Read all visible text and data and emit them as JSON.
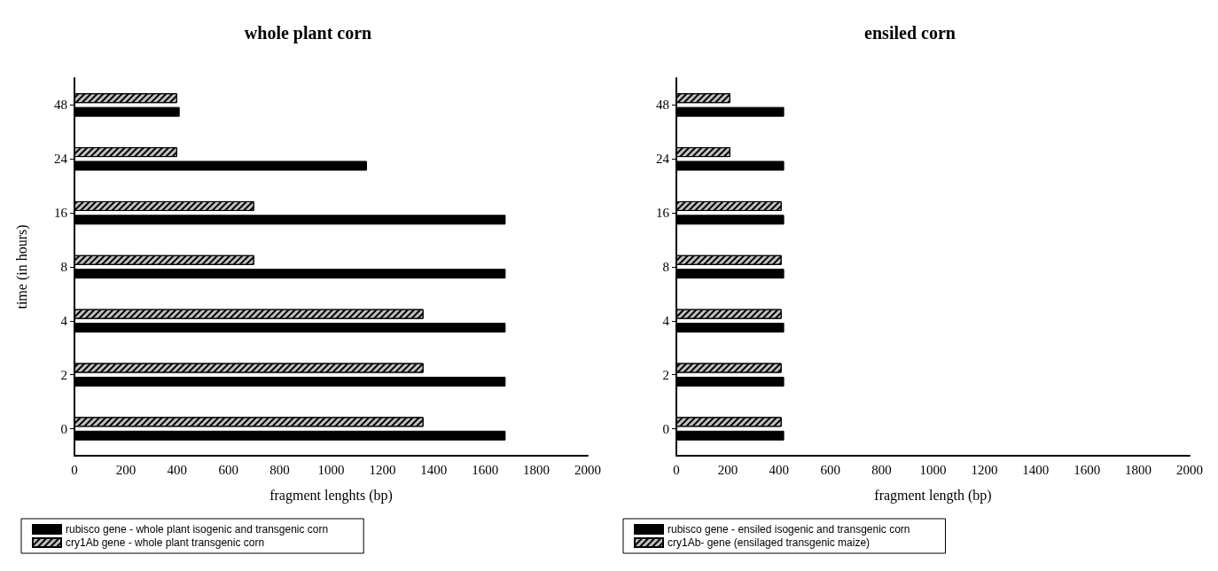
{
  "chart_data": [
    {
      "type": "bar",
      "orientation": "horizontal",
      "title": "whole plant corn",
      "xlabel": "fragment lenghts (bp)",
      "ylabel": "time (in hours)",
      "categories": [
        "48",
        "24",
        "16",
        "8",
        "4",
        "2",
        "0"
      ],
      "series": [
        {
          "name": "rubisco gene - whole plant isogenic and transgenic corn",
          "color": "#000000",
          "values": [
            410,
            1140,
            1680,
            1680,
            1680,
            1680,
            1680
          ]
        },
        {
          "name": "cry1Ab gene - whole plant transgenic corn",
          "color": "#c0c0c0",
          "values": [
            400,
            400,
            700,
            700,
            1360,
            1360,
            1360
          ]
        }
      ],
      "xlim": [
        0,
        2000
      ],
      "xticks": [
        0,
        200,
        400,
        600,
        800,
        1000,
        1200,
        1400,
        1600,
        1800,
        2000
      ],
      "grid": false,
      "legend": "bottom left"
    },
    {
      "type": "bar",
      "orientation": "horizontal",
      "title": "ensiled corn",
      "xlabel": "fragment length (bp)",
      "categories": [
        "48",
        "24",
        "16",
        "8",
        "4",
        "2",
        "0"
      ],
      "series": [
        {
          "name": "rubisco gene - ensiled isogenic and transgenic corn",
          "color": "#000000",
          "values": [
            420,
            420,
            420,
            420,
            420,
            420,
            420
          ]
        },
        {
          "name": "cry1Ab- gene (ensilaged transgenic maize)",
          "color": "#c0c0c0",
          "values": [
            210,
            210,
            410,
            410,
            410,
            410,
            410
          ]
        }
      ],
      "xlim": [
        0,
        2000
      ],
      "xticks": [
        0,
        200,
        400,
        600,
        800,
        1000,
        1200,
        1400,
        1600,
        1800,
        2000
      ],
      "grid": false,
      "legend": "bottom left"
    }
  ]
}
